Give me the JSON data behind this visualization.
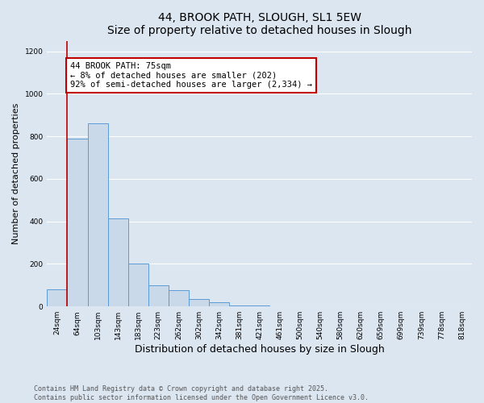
{
  "title1": "44, BROOK PATH, SLOUGH, SL1 5EW",
  "title2": "Size of property relative to detached houses in Slough",
  "xlabel": "Distribution of detached houses by size in Slough",
  "ylabel": "Number of detached properties",
  "categories": [
    "24sqm",
    "64sqm",
    "103sqm",
    "143sqm",
    "183sqm",
    "223sqm",
    "262sqm",
    "302sqm",
    "342sqm",
    "381sqm",
    "421sqm",
    "461sqm",
    "500sqm",
    "540sqm",
    "580sqm",
    "620sqm",
    "659sqm",
    "699sqm",
    "739sqm",
    "778sqm",
    "818sqm"
  ],
  "values": [
    80,
    790,
    860,
    415,
    200,
    100,
    75,
    35,
    20,
    5,
    5,
    2,
    1,
    0,
    1,
    0,
    0,
    0,
    1,
    0,
    1
  ],
  "bar_color": "#c9d9ea",
  "bar_edge_color": "#5b9bd5",
  "vline_color": "#c00000",
  "vline_x_index": 1,
  "annotation_text": "44 BROOK PATH: 75sqm\n← 8% of detached houses are smaller (202)\n92% of semi-detached houses are larger (2,334) →",
  "annotation_box_color": "#ffffff",
  "annotation_border_color": "#c00000",
  "bg_color": "#dce6f1",
  "plot_bg_color": "#dce6f1",
  "footer1": "Contains HM Land Registry data © Crown copyright and database right 2025.",
  "footer2": "Contains public sector information licensed under the Open Government Licence v3.0.",
  "ylim": [
    0,
    1250
  ],
  "yticks": [
    0,
    200,
    400,
    600,
    800,
    1000,
    1200
  ],
  "title_fontsize": 10,
  "ylabel_fontsize": 8,
  "xlabel_fontsize": 9,
  "tick_fontsize": 6.5,
  "annot_fontsize": 7.5,
  "footer_fontsize": 6
}
